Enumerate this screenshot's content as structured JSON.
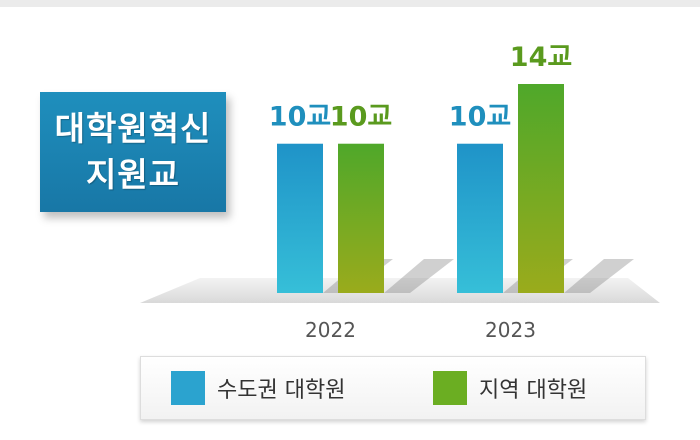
{
  "title_box": {
    "line1": "대학원혁신",
    "line2": "지원교"
  },
  "colors": {
    "blue": "#2ba3cf",
    "green": "#6bae22",
    "value_blue": "#1f8fbd",
    "value_green": "#5a9a1e"
  },
  "chart_data": {
    "type": "bar",
    "categories": [
      "2022",
      "2023"
    ],
    "series": [
      {
        "name": "수도권 대학원",
        "values": [
          10,
          10
        ],
        "labels": [
          "10교",
          "10교"
        ],
        "color": "#2ba3cf"
      },
      {
        "name": "지역 대학원",
        "values": [
          10,
          14
        ],
        "labels": [
          "10교",
          "14교"
        ],
        "color": "#6bae22"
      }
    ],
    "title": "대학원혁신 지원교",
    "xlabel": "",
    "ylabel": "",
    "ylim": [
      0,
      14
    ],
    "legend": "bottom",
    "grid": false
  }
}
